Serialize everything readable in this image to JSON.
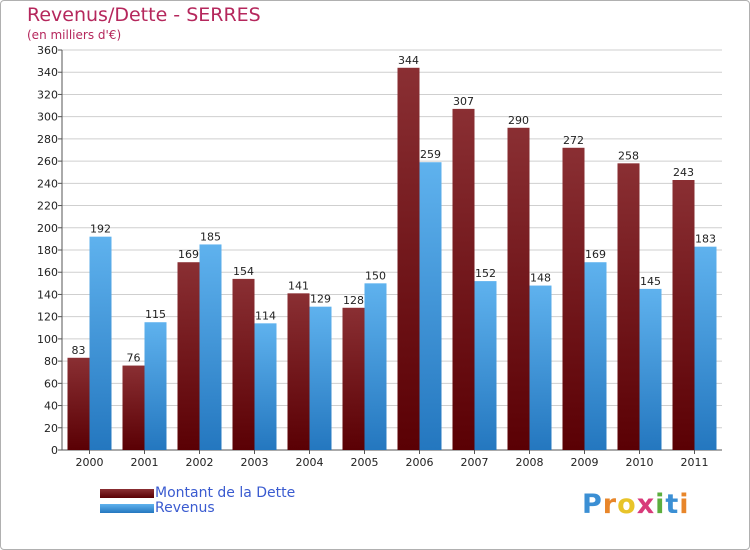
{
  "title": "Revenus/Dette - SERRES",
  "subtitle": "(en milliers d'€)",
  "brand": {
    "letters": [
      {
        "char": "P",
        "color": "#3b8fd4"
      },
      {
        "char": "r",
        "color": "#e8862a"
      },
      {
        "char": "o",
        "color": "#e8c42a"
      },
      {
        "char": "x",
        "color": "#d83a7a"
      },
      {
        "char": "i",
        "color": "#5cae3e"
      },
      {
        "char": "t",
        "color": "#3b8fd4"
      },
      {
        "char": "i",
        "color": "#e8862a"
      }
    ]
  },
  "legend": {
    "items": [
      {
        "label": "Montant de la Dette",
        "color": "#6b0f12"
      },
      {
        "label": "Revenus",
        "color": "#4aa6e6"
      }
    ]
  },
  "chart_data": {
    "type": "bar",
    "title": "Revenus/Dette - SERRES",
    "subtitle": "(en milliers d'€)",
    "categories": [
      "2000",
      "2001",
      "2002",
      "2003",
      "2004",
      "2005",
      "2006",
      "2007",
      "2008",
      "2009",
      "2010",
      "2011"
    ],
    "series": [
      {
        "name": "Montant de la Dette",
        "color": "#6b0f12",
        "values": [
          83,
          76,
          169,
          154,
          141,
          128,
          344,
          307,
          290,
          272,
          258,
          243
        ]
      },
      {
        "name": "Revenus",
        "color": "#4aa6e6",
        "values": [
          192,
          115,
          185,
          114,
          129,
          150,
          259,
          152,
          148,
          169,
          145,
          183
        ]
      }
    ],
    "ylim": [
      0,
      360
    ],
    "yticks": [
      0,
      20,
      40,
      60,
      80,
      100,
      120,
      140,
      160,
      180,
      200,
      220,
      240,
      260,
      280,
      300,
      320,
      340,
      360
    ],
    "grid": true,
    "legend_position": "bottom-left"
  }
}
